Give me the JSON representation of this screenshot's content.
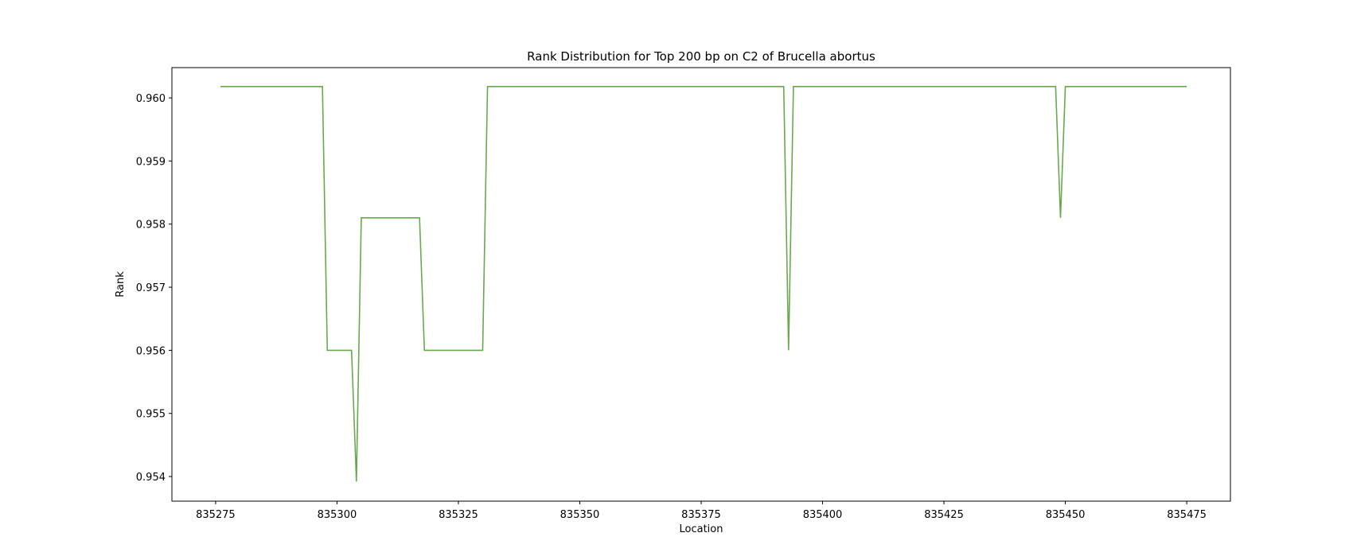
{
  "chart_data": {
    "type": "line",
    "title": "Rank Distribution for Top 200 bp on C2 of Brucella abortus",
    "xlabel": "Location",
    "ylabel": "Rank",
    "xlim": [
      835266,
      835484
    ],
    "ylim": [
      0.95361,
      0.96048
    ],
    "xticks": [
      835275,
      835300,
      835325,
      835350,
      835375,
      835400,
      835425,
      835450,
      835475
    ],
    "yticks": [
      0.954,
      0.955,
      0.956,
      0.957,
      0.958,
      0.959,
      0.96
    ],
    "grid": false,
    "legend": "none",
    "series": [
      {
        "color": "#6aa84f",
        "x": [
          835276,
          835297,
          835298,
          835303,
          835304,
          835305,
          835317,
          835318,
          835330,
          835331,
          835392,
          835393,
          835394,
          835448,
          835449,
          835450,
          835475
        ],
        "y": [
          0.96018,
          0.96018,
          0.956,
          0.956,
          0.95392,
          0.9581,
          0.9581,
          0.956,
          0.956,
          0.96018,
          0.96018,
          0.956,
          0.96018,
          0.96018,
          0.9581,
          0.96018,
          0.96018
        ]
      }
    ]
  }
}
